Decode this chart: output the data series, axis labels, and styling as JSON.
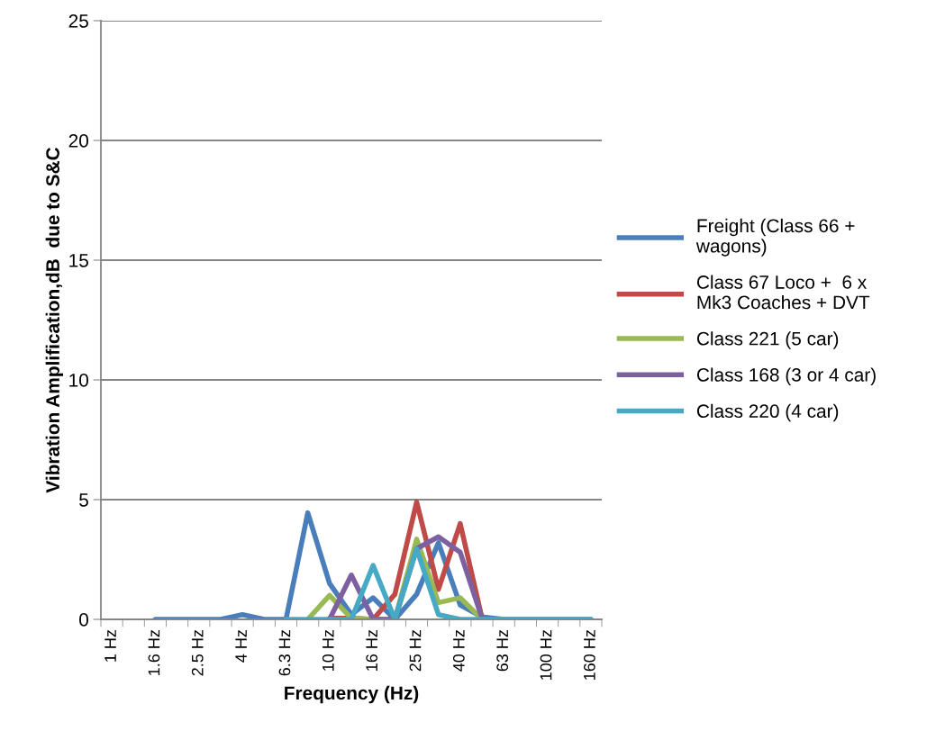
{
  "chart_data": {
    "type": "line",
    "xlabel": "Frequency (Hz)",
    "ylabel": "Vibration Amplification,dB  due to S&C",
    "categories": [
      "1 Hz",
      null,
      "1.6 Hz",
      null,
      "2.5 Hz",
      null,
      "4 Hz",
      null,
      "6.3 Hz",
      null,
      "10 Hz",
      null,
      "16 Hz",
      null,
      "25 Hz",
      null,
      "40 Hz",
      null,
      "63 Hz",
      null,
      "100 Hz",
      null,
      "160 Hz"
    ],
    "series": [
      {
        "name": "Freight (Class 66 +\nwagons)",
        "color": "#4a7ebb",
        "values": [
          null,
          null,
          0,
          0,
          0,
          0,
          0.2,
          0,
          0,
          4.45,
          1.5,
          0.2,
          0.9,
          0,
          1.05,
          3.2,
          0.6,
          0.1,
          0,
          0,
          0,
          0,
          0
        ]
      },
      {
        "name": "Class 67 Loco +  6 x\nMk3 Coaches + DVT",
        "color": "#be4b48",
        "values": [
          null,
          null,
          null,
          null,
          null,
          null,
          null,
          null,
          null,
          null,
          0.05,
          0.05,
          0,
          1.05,
          4.9,
          1.25,
          4.0,
          0.05,
          null,
          null,
          null,
          null,
          null
        ]
      },
      {
        "name": "Class 221 (5 car)",
        "color": "#98b954",
        "values": [
          null,
          null,
          null,
          null,
          null,
          null,
          null,
          null,
          null,
          0,
          1.0,
          0.05,
          0,
          0,
          3.35,
          0.7,
          0.9,
          0,
          null,
          null,
          null,
          null,
          null
        ]
      },
      {
        "name": "Class 168 (3 or 4 car)",
        "color": "#7d60a0",
        "values": [
          null,
          null,
          null,
          null,
          null,
          null,
          null,
          null,
          null,
          null,
          0,
          1.85,
          0,
          0,
          2.95,
          3.45,
          2.8,
          0.05,
          null,
          null,
          null,
          null,
          null
        ]
      },
      {
        "name": "Class 220 (4 car)",
        "color": "#46aac5",
        "values": [
          null,
          null,
          null,
          null,
          null,
          null,
          null,
          null,
          0,
          0,
          0,
          0,
          2.25,
          0,
          2.95,
          0.2,
          0,
          0,
          0,
          0,
          0,
          0,
          0
        ]
      }
    ],
    "ylim": [
      0,
      25
    ],
    "yticks": [
      0,
      5,
      10,
      15,
      20,
      25
    ],
    "grid": "y",
    "legend": "right"
  }
}
